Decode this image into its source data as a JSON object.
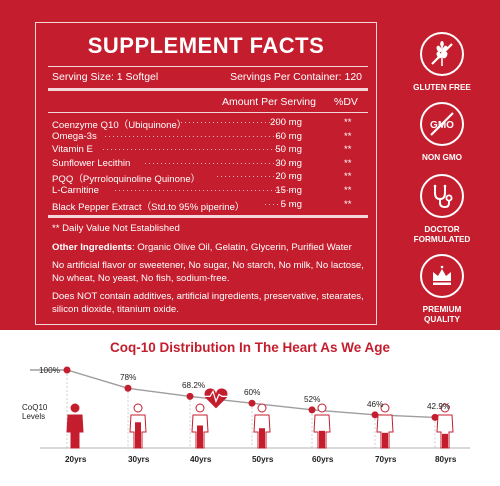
{
  "facts": {
    "title": "SUPPLEMENT FACTS",
    "serving_size": "Serving Size: 1 Softgel",
    "servings_per_container": "Servings Per Container: 120",
    "amount_header": "Amount Per Serving",
    "dv_header": "%DV",
    "nutrients": [
      {
        "name": "Coenzyme Q10（Ubiquinone）",
        "amount": "200 mg",
        "dv": "**"
      },
      {
        "name": "Omega-3s",
        "amount": "60 mg",
        "dv": "**"
      },
      {
        "name": "Vitamin E",
        "amount": "50 mg",
        "dv": "**"
      },
      {
        "name": "Sunflower Lecithin",
        "amount": "30 mg",
        "dv": "**"
      },
      {
        "name": "PQQ（Pyrroloquinoline Quinone）",
        "amount": "20 mg",
        "dv": "**"
      },
      {
        "name": "L-Carnitine",
        "amount": "15 mg",
        "dv": "**"
      },
      {
        "name": "Black Pepper Extract（Std.to 95% piperine）",
        "amount": "5 mg",
        "dv": "**"
      }
    ],
    "daily_value_note": "** Daily Value Not Established",
    "other_ingredients_label": "Other Ingredients",
    "other_ingredients": ": Organic Olive Oil, Gelatin, Glycerin, Purified Water",
    "free_from": "No artificial flavor or sweetener, No sugar, No starch, No milk, No lactose, No wheat, No yeast, No fish, sodium-free.",
    "not_contain": "Does NOT contain additives, artificial ingredients, preservative, stearates, silicon dioxide, titanium oxide."
  },
  "badges": [
    {
      "icon": "wheat-crossed-icon",
      "label": "GLUTEN FREE"
    },
    {
      "icon": "gmo-crossed-icon",
      "label": "NON GMO"
    },
    {
      "icon": "stethoscope-icon",
      "label": "DOCTOR FORMULATED"
    },
    {
      "icon": "crown-icon",
      "label": "PREMIUM QUALITY"
    }
  ],
  "chart_data": {
    "type": "line",
    "title": "Coq-10 Distribution In The Heart As We Age",
    "ylabel": "CoQ10 Levels",
    "categories": [
      "20yrs",
      "30yrs",
      "40yrs",
      "50yrs",
      "60yrs",
      "70yrs",
      "80yrs"
    ],
    "values": [
      100,
      78,
      68.2,
      60,
      52,
      46,
      42.9
    ],
    "value_labels": [
      "100%",
      "78%",
      "68.2%",
      "60%",
      "52%",
      "46%",
      "42.9%"
    ],
    "color": "#c41e2e"
  },
  "colors": {
    "brand_red": "#c41e2e"
  }
}
